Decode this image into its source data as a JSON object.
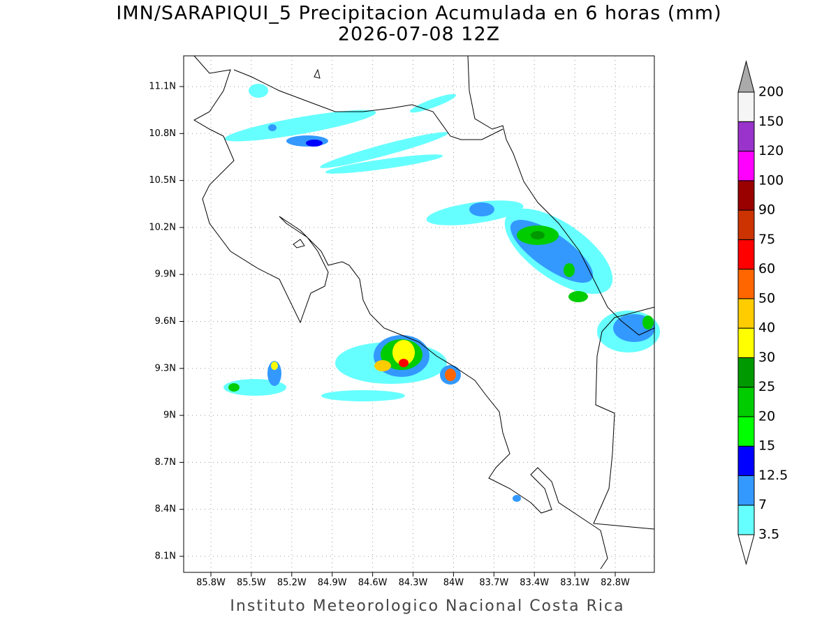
{
  "header": {
    "title": "IMN/SARAPIQUI_5 Precipitacion Acumulada en 6 horas (mm)",
    "subtitle": "2026-07-08 12Z"
  },
  "map": {
    "lat_labels": [
      "11.1N",
      "10.8N",
      "10.5N",
      "10.2N",
      "9.9N",
      "9.6N",
      "9.3N",
      "9N",
      "8.7N",
      "8.4N",
      "8.1N"
    ],
    "lon_labels": [
      "85.8W",
      "85.5W",
      "85.2W",
      "84.9W",
      "84.6W",
      "84.3W",
      "84W",
      "83.7W",
      "83.4W",
      "83.1W",
      "82.8W"
    ]
  },
  "colorbar": {
    "levels": [
      "3.5",
      "7",
      "12.5",
      "15",
      "20",
      "25",
      "30",
      "40",
      "50",
      "60",
      "75",
      "90",
      "100",
      "120",
      "150",
      "200"
    ],
    "colors": [
      "#ffffff",
      "#66ffff",
      "#3399ff",
      "#0000ff",
      "#00ff00",
      "#00cc00",
      "#009900",
      "#ffff00",
      "#ffcc00",
      "#ff6600",
      "#ff0000",
      "#cc3300",
      "#990000",
      "#ff00ff",
      "#9933cc",
      "#f5f5f5",
      "#aaaaaa"
    ]
  },
  "footer": {
    "credit": "Instituto Meteorologico Nacional Costa Rica"
  }
}
